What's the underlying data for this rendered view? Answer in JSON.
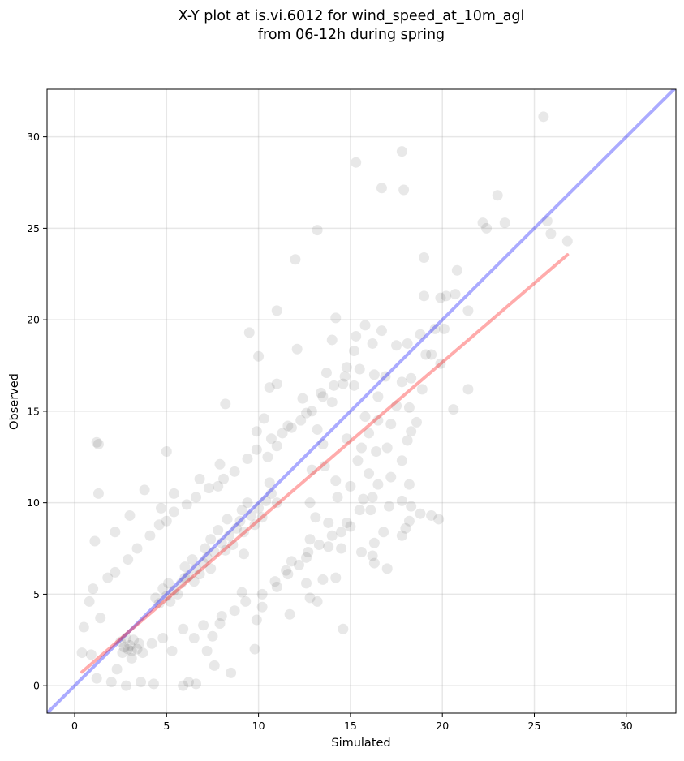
{
  "chart_data": {
    "type": "scatter",
    "title_lines": [
      "X-Y plot at is.vi.6012 for wind_speed_at_10m_agl",
      "from 06-12h during spring"
    ],
    "xlabel": "Simulated",
    "ylabel": "Observed",
    "xlim": [
      -1.5,
      32.7
    ],
    "ylim": [
      -1.5,
      32.6
    ],
    "xticks": [
      0,
      5,
      10,
      15,
      20,
      25,
      30
    ],
    "yticks": [
      0,
      5,
      10,
      15,
      20,
      25,
      30
    ],
    "grid": true,
    "legend": "none",
    "point_color": "#000000",
    "point_alpha": 0.09,
    "points": [
      [
        25.5,
        31.1
      ],
      [
        17.8,
        29.2
      ],
      [
        15.3,
        28.6
      ],
      [
        16.7,
        27.2
      ],
      [
        17.9,
        27.1
      ],
      [
        23.0,
        26.8
      ],
      [
        22.2,
        25.3
      ],
      [
        23.4,
        25.3
      ],
      [
        25.7,
        25.4
      ],
      [
        22.4,
        25.0
      ],
      [
        13.2,
        24.9
      ],
      [
        25.9,
        24.7
      ],
      [
        26.8,
        24.3
      ],
      [
        19.0,
        23.4
      ],
      [
        12.0,
        23.3
      ],
      [
        20.8,
        22.7
      ],
      [
        19.9,
        21.2
      ],
      [
        20.2,
        21.3
      ],
      [
        20.7,
        21.4
      ],
      [
        19.0,
        21.3
      ],
      [
        21.4,
        20.5
      ],
      [
        11.0,
        20.5
      ],
      [
        14.2,
        20.1
      ],
      [
        19.6,
        19.5
      ],
      [
        20.1,
        19.5
      ],
      [
        15.8,
        19.7
      ],
      [
        16.7,
        19.4
      ],
      [
        9.5,
        19.3
      ],
      [
        15.3,
        19.1
      ],
      [
        18.8,
        19.2
      ],
      [
        14.0,
        18.9
      ],
      [
        16.2,
        18.7
      ],
      [
        17.5,
        18.6
      ],
      [
        18.1,
        18.7
      ],
      [
        12.1,
        18.4
      ],
      [
        15.2,
        18.3
      ],
      [
        19.1,
        18.1
      ],
      [
        10.0,
        18.0
      ],
      [
        19.4,
        18.1
      ],
      [
        19.9,
        17.6
      ],
      [
        14.8,
        17.4
      ],
      [
        15.5,
        17.3
      ],
      [
        13.7,
        17.1
      ],
      [
        16.3,
        17.0
      ],
      [
        16.9,
        16.9
      ],
      [
        18.3,
        16.8
      ],
      [
        17.8,
        16.6
      ],
      [
        14.6,
        16.5
      ],
      [
        11.0,
        16.5
      ],
      [
        10.6,
        16.3
      ],
      [
        15.2,
        16.4
      ],
      [
        18.9,
        16.2
      ],
      [
        21.4,
        16.2
      ],
      [
        13.4,
        16.0
      ],
      [
        16.5,
        15.8
      ],
      [
        12.4,
        15.7
      ],
      [
        8.2,
        15.4
      ],
      [
        14.0,
        15.5
      ],
      [
        18.2,
        15.2
      ],
      [
        17.5,
        15.3
      ],
      [
        20.6,
        15.1
      ],
      [
        12.6,
        14.9
      ],
      [
        15.8,
        14.7
      ],
      [
        16.5,
        14.5
      ],
      [
        10.3,
        14.6
      ],
      [
        17.2,
        14.3
      ],
      [
        18.6,
        14.4
      ],
      [
        11.6,
        14.2
      ],
      [
        13.2,
        14.0
      ],
      [
        9.9,
        13.9
      ],
      [
        18.3,
        13.9
      ],
      [
        16.0,
        13.8
      ],
      [
        14.8,
        13.5
      ],
      [
        18.1,
        13.4
      ],
      [
        1.2,
        13.3
      ],
      [
        1.3,
        13.2
      ],
      [
        13.5,
        13.2
      ],
      [
        11.0,
        13.1
      ],
      [
        15.6,
        13.0
      ],
      [
        17.0,
        13.0
      ],
      [
        16.4,
        12.8
      ],
      [
        5.0,
        12.8
      ],
      [
        7.9,
        12.1
      ],
      [
        10.5,
        12.5
      ],
      [
        15.4,
        12.3
      ],
      [
        17.8,
        12.3
      ],
      [
        13.6,
        12.0
      ],
      [
        12.9,
        11.8
      ],
      [
        16.0,
        11.6
      ],
      [
        17.2,
        11.4
      ],
      [
        6.8,
        11.3
      ],
      [
        14.2,
        11.2
      ],
      [
        10.6,
        11.1
      ],
      [
        16.5,
        11.0
      ],
      [
        18.2,
        11.0
      ],
      [
        15.0,
        10.9
      ],
      [
        7.8,
        10.9
      ],
      [
        3.8,
        10.7
      ],
      [
        1.3,
        10.5
      ],
      [
        5.4,
        10.5
      ],
      [
        14.3,
        10.3
      ],
      [
        15.7,
        10.2
      ],
      [
        17.8,
        10.1
      ],
      [
        12.8,
        10.0
      ],
      [
        17.1,
        9.8
      ],
      [
        18.3,
        9.8
      ],
      [
        4.7,
        9.7
      ],
      [
        16.1,
        9.6
      ],
      [
        18.8,
        9.4
      ],
      [
        19.4,
        9.3
      ],
      [
        5.4,
        9.5
      ],
      [
        3.0,
        9.3
      ],
      [
        13.1,
        9.2
      ],
      [
        19.8,
        9.1
      ],
      [
        18.2,
        9.0
      ],
      [
        13.8,
        8.9
      ],
      [
        15.0,
        8.7
      ],
      [
        18.0,
        8.6
      ],
      [
        14.5,
        8.4
      ],
      [
        16.8,
        8.4
      ],
      [
        2.2,
        8.4
      ],
      [
        17.8,
        8.2
      ],
      [
        12.8,
        8.0
      ],
      [
        1.1,
        7.9
      ],
      [
        16.3,
        7.8
      ],
      [
        13.8,
        7.6
      ],
      [
        14.5,
        7.5
      ],
      [
        15.6,
        7.3
      ],
      [
        9.2,
        7.2
      ],
      [
        16.2,
        7.1
      ],
      [
        12.6,
        7.0
      ],
      [
        11.8,
        6.8
      ],
      [
        16.3,
        6.7
      ],
      [
        17.0,
        6.4
      ],
      [
        11.5,
        6.3
      ],
      [
        13.5,
        5.8
      ],
      [
        12.6,
        5.6
      ],
      [
        11.0,
        5.4
      ],
      [
        14.2,
        5.9
      ],
      [
        9.1,
        5.1
      ],
      [
        12.8,
        4.8
      ],
      [
        10.2,
        4.3
      ],
      [
        11.7,
        3.9
      ],
      [
        13.2,
        4.6
      ],
      [
        9.9,
        3.6
      ],
      [
        7.9,
        3.4
      ],
      [
        14.6,
        3.1
      ],
      [
        9.8,
        2.0
      ],
      [
        7.2,
        1.9
      ],
      [
        7.6,
        1.1
      ],
      [
        8.5,
        0.7
      ],
      [
        0.5,
        3.2
      ],
      [
        0.4,
        1.8
      ],
      [
        0.9,
        1.7
      ],
      [
        1.2,
        0.4
      ],
      [
        2.0,
        0.2
      ],
      [
        2.8,
        0.0
      ],
      [
        3.6,
        0.2
      ],
      [
        4.3,
        0.1
      ],
      [
        5.9,
        0.0
      ],
      [
        6.2,
        0.2
      ],
      [
        6.6,
        0.1
      ],
      [
        1.0,
        5.3
      ],
      [
        0.8,
        4.6
      ],
      [
        1.4,
        3.7
      ],
      [
        1.8,
        5.9
      ],
      [
        2.2,
        6.2
      ],
      [
        2.9,
        6.9
      ],
      [
        3.4,
        7.5
      ],
      [
        4.1,
        8.2
      ],
      [
        4.6,
        8.8
      ],
      [
        5.0,
        9.0
      ],
      [
        6.1,
        9.9
      ],
      [
        6.6,
        10.3
      ],
      [
        7.3,
        10.8
      ],
      [
        8.1,
        11.3
      ],
      [
        8.7,
        11.7
      ],
      [
        9.4,
        12.4
      ],
      [
        9.9,
        12.9
      ],
      [
        10.7,
        13.5
      ],
      [
        11.3,
        13.8
      ],
      [
        11.8,
        14.1
      ],
      [
        12.3,
        14.5
      ],
      [
        12.9,
        15.0
      ],
      [
        13.5,
        15.8
      ],
      [
        14.1,
        16.4
      ],
      [
        14.7,
        16.9
      ],
      [
        5.9,
        3.1
      ],
      [
        6.5,
        2.6
      ],
      [
        7.0,
        3.3
      ],
      [
        7.5,
        2.7
      ],
      [
        8.0,
        3.8
      ],
      [
        8.7,
        4.1
      ],
      [
        9.3,
        4.6
      ],
      [
        10.2,
        5.0
      ],
      [
        10.9,
        5.7
      ],
      [
        11.6,
        6.1
      ],
      [
        12.2,
        6.6
      ],
      [
        12.7,
        7.3
      ],
      [
        13.3,
        7.7
      ],
      [
        14.0,
        8.2
      ],
      [
        14.8,
        8.9
      ],
      [
        15.5,
        9.6
      ],
      [
        16.2,
        10.3
      ],
      [
        2.3,
        0.9
      ],
      [
        3.1,
        1.5
      ],
      [
        3.7,
        1.8
      ],
      [
        4.2,
        2.3
      ],
      [
        4.8,
        2.6
      ],
      [
        5.3,
        1.9
      ],
      [
        2.9,
        2.0
      ],
      [
        3.0,
        2.2
      ],
      [
        3.2,
        2.5
      ],
      [
        2.7,
        2.1
      ],
      [
        3.4,
        2.0
      ],
      [
        2.5,
        2.4
      ],
      [
        3.1,
        1.9
      ],
      [
        2.8,
        2.6
      ],
      [
        3.5,
        2.3
      ],
      [
        2.6,
        1.8
      ],
      [
        4.6,
        4.5
      ],
      [
        5.0,
        4.9
      ],
      [
        5.4,
        5.2
      ],
      [
        5.8,
        5.6
      ],
      [
        4.8,
        5.3
      ],
      [
        5.2,
        4.6
      ],
      [
        5.6,
        5.0
      ],
      [
        6.0,
        5.9
      ],
      [
        4.4,
        4.8
      ],
      [
        5.1,
        5.6
      ],
      [
        6.2,
        6.0
      ],
      [
        6.6,
        6.4
      ],
      [
        7.0,
        6.7
      ],
      [
        6.4,
        6.9
      ],
      [
        6.8,
        6.1
      ],
      [
        7.2,
        7.0
      ],
      [
        6.0,
        6.5
      ],
      [
        7.4,
        6.4
      ],
      [
        6.5,
        5.7
      ],
      [
        7.1,
        7.5
      ],
      [
        7.6,
        7.3
      ],
      [
        8.0,
        7.8
      ],
      [
        8.4,
        8.2
      ],
      [
        7.8,
        8.5
      ],
      [
        8.2,
        7.4
      ],
      [
        8.8,
        8.6
      ],
      [
        7.4,
        8.0
      ],
      [
        8.6,
        7.7
      ],
      [
        9.0,
        9.0
      ],
      [
        8.3,
        9.1
      ],
      [
        9.2,
        8.4
      ],
      [
        9.6,
        9.3
      ],
      [
        10.0,
        9.7
      ],
      [
        9.4,
        10.0
      ],
      [
        9.8,
        8.8
      ],
      [
        10.4,
        10.1
      ],
      [
        9.1,
        9.6
      ],
      [
        10.2,
        9.2
      ],
      [
        10.7,
        10.5
      ],
      [
        11.0,
        10.0
      ]
    ],
    "reference_line": {
      "x": [
        -1.5,
        32.7
      ],
      "y": [
        -1.5,
        32.7
      ],
      "color": "#0000ff",
      "alpha": 0.33
    },
    "fit_line": {
      "x": [
        0.4,
        26.8
      ],
      "y": [
        0.75,
        23.55
      ],
      "color": "#ff0000",
      "alpha": 0.33
    }
  }
}
